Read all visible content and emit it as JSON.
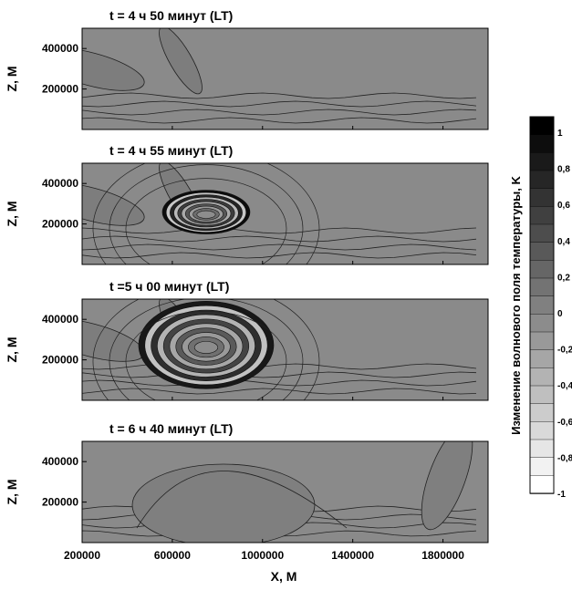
{
  "chart_data": {
    "type": "contour",
    "panels": [
      {
        "title": "t = 4 ч 50 минут (LT)",
        "peak": 0.0
      },
      {
        "title": "t = 4 ч 55 минут (LT)",
        "peak": 1.0
      },
      {
        "title": "t =5 ч 00 минут (LT)",
        "peak": 0.9
      },
      {
        "title": "t = 6 ч 40 минут (LT)",
        "peak": 0.1
      }
    ],
    "xlabel": "X, M",
    "ylabel": "Z, M",
    "xlim": [
      200000,
      2000000
    ],
    "ylim": [
      0,
      500000
    ],
    "xticks": [
      "200000",
      "600000",
      "1000000",
      "1400000",
      "1800000"
    ],
    "yticks": [
      "200000",
      "400000"
    ],
    "colorbar": {
      "label": "Изменение волнового поля температуры, K",
      "range": [
        -1,
        1.1
      ],
      "ticks": [
        "1",
        "0,8",
        "0,6",
        "0,4",
        "0,2",
        "0",
        "-0,2",
        "-0,4",
        "-0,6",
        "-0,8",
        "-1"
      ]
    }
  }
}
